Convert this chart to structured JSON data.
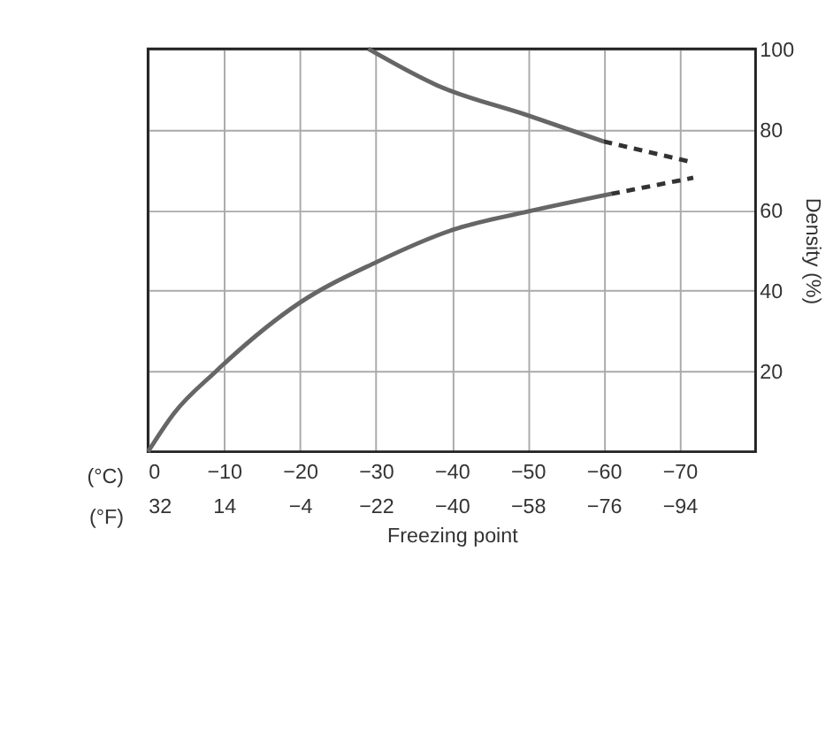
{
  "chart_data": {
    "type": "line",
    "xlabel": "Freezing point",
    "ylabel": "Density (%)",
    "annotations": [
      "(°C)",
      "(°F)"
    ],
    "xlim": [
      0,
      -80
    ],
    "xticks": [
      0,
      -10,
      -20,
      -30,
      -40,
      -50,
      -60,
      -70
    ],
    "x2lim": [
      32,
      -112
    ],
    "x2ticks": [
      32,
      14,
      -4,
      -22,
      -40,
      -58,
      -76,
      -94
    ],
    "ylim": [
      0,
      100
    ],
    "yticks": [
      20,
      40,
      60,
      80,
      100
    ],
    "grid": true,
    "marker": "none",
    "series": [
      {
        "color": "#666666",
        "line_style": "solid",
        "x": [
          0,
          -3.4,
          -8.8,
          -20,
          -30,
          -40,
          -50,
          -61
        ],
        "values": [
          0,
          9.5,
          19.7,
          37,
          47,
          55,
          59.6,
          64
        ]
      },
      {
        "color": "#333333",
        "line_style": "dashed",
        "x": [
          -61,
          -71.8
        ],
        "values": [
          64,
          68
        ]
      },
      {
        "color": "#666666",
        "line_style": "solid",
        "x": [
          -29,
          -38,
          -50,
          -60
        ],
        "values": [
          100,
          91,
          83.5,
          77
        ]
      },
      {
        "color": "#333333",
        "line_style": "dashed",
        "x": [
          -60,
          -71.4
        ],
        "values": [
          77,
          72
        ]
      }
    ]
  }
}
